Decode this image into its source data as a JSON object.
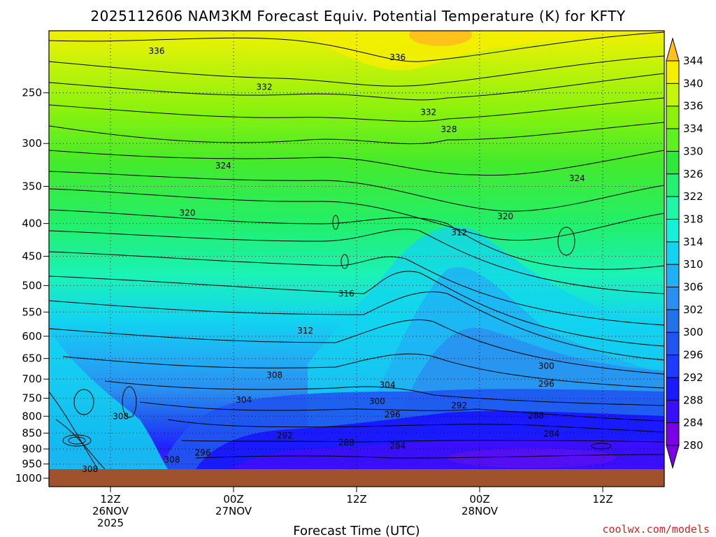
{
  "chart_data": {
    "type": "heatmap",
    "title": "2025112606 NAM3KM Forecast Equiv. Potential Temperature (K) for KFTY",
    "xlabel": "Forecast Time (UTC)",
    "ylabel": "",
    "y_scale": "log-pressure (hPa)",
    "ylim": [
      1000,
      200
    ],
    "yticks": [
      250,
      300,
      350,
      400,
      450,
      500,
      550,
      600,
      650,
      700,
      750,
      800,
      850,
      900,
      950,
      1000
    ],
    "xlim_hours_from_init": [
      0,
      60
    ],
    "xticks": [
      {
        "hour": 6,
        "lines": [
          "12Z",
          "26NOV",
          "2025"
        ]
      },
      {
        "hour": 18,
        "lines": [
          "00Z",
          "27NOV"
        ]
      },
      {
        "hour": 30,
        "lines": [
          "12Z"
        ]
      },
      {
        "hour": 42,
        "lines": [
          "00Z",
          "28NOV"
        ]
      },
      {
        "hour": 54,
        "lines": [
          "12Z"
        ]
      }
    ],
    "grid": "dotted horizontal at pressure ticks, dotted vertical at time ticks",
    "colorbar": {
      "units": "K",
      "levels": [
        280,
        284,
        288,
        292,
        296,
        300,
        302,
        306,
        310,
        314,
        318,
        322,
        326,
        330,
        334,
        336,
        340,
        344
      ],
      "colors": [
        "#7a00e6",
        "#3a0fff",
        "#1a1aff",
        "#1e3cff",
        "#1f56f0",
        "#2272e8",
        "#2a8ff0",
        "#1fb0f5",
        "#12d4f0",
        "#17f0d8",
        "#20f5a8",
        "#25f070",
        "#2ee83a",
        "#5ef021",
        "#8cf20c",
        "#c5f50a",
        "#f5ee00",
        "#ffc21a"
      ]
    },
    "contour_labels": [
      {
        "hour": 10.5,
        "p": 215,
        "value": "336"
      },
      {
        "hour": 34.0,
        "p": 220,
        "value": "336"
      },
      {
        "hour": 21.0,
        "p": 245,
        "value": "332"
      },
      {
        "hour": 37.0,
        "p": 268,
        "value": "332"
      },
      {
        "hour": 39.0,
        "p": 285,
        "value": "328"
      },
      {
        "hour": 17.0,
        "p": 325,
        "value": "324"
      },
      {
        "hour": 51.5,
        "p": 340,
        "value": "324"
      },
      {
        "hour": 13.5,
        "p": 385,
        "value": "320"
      },
      {
        "hour": 44.5,
        "p": 390,
        "value": "320"
      },
      {
        "hour": 40.0,
        "p": 413,
        "value": "312"
      },
      {
        "hour": 29.0,
        "p": 515,
        "value": "316"
      },
      {
        "hour": 25.0,
        "p": 588,
        "value": "312"
      },
      {
        "hour": 22.0,
        "p": 690,
        "value": "308"
      },
      {
        "hour": 48.5,
        "p": 668,
        "value": "300"
      },
      {
        "hour": 33.0,
        "p": 715,
        "value": "304"
      },
      {
        "hour": 48.5,
        "p": 712,
        "value": "296"
      },
      {
        "hour": 19.0,
        "p": 755,
        "value": "304"
      },
      {
        "hour": 32.0,
        "p": 758,
        "value": "300"
      },
      {
        "hour": 40.0,
        "p": 770,
        "value": "292"
      },
      {
        "hour": 33.5,
        "p": 795,
        "value": "296"
      },
      {
        "hour": 47.5,
        "p": 798,
        "value": "288"
      },
      {
        "hour": 7.0,
        "p": 800,
        "value": "308"
      },
      {
        "hour": 49.0,
        "p": 852,
        "value": "284"
      },
      {
        "hour": 23.0,
        "p": 858,
        "value": "292"
      },
      {
        "hour": 29.0,
        "p": 880,
        "value": "288"
      },
      {
        "hour": 34.0,
        "p": 890,
        "value": "284"
      },
      {
        "hour": 15.0,
        "p": 912,
        "value": "296"
      },
      {
        "hour": 12.0,
        "p": 935,
        "value": "308"
      },
      {
        "hour": 4.0,
        "p": 968,
        "value": "308"
      }
    ]
  },
  "credit": "coolwx.com/models"
}
